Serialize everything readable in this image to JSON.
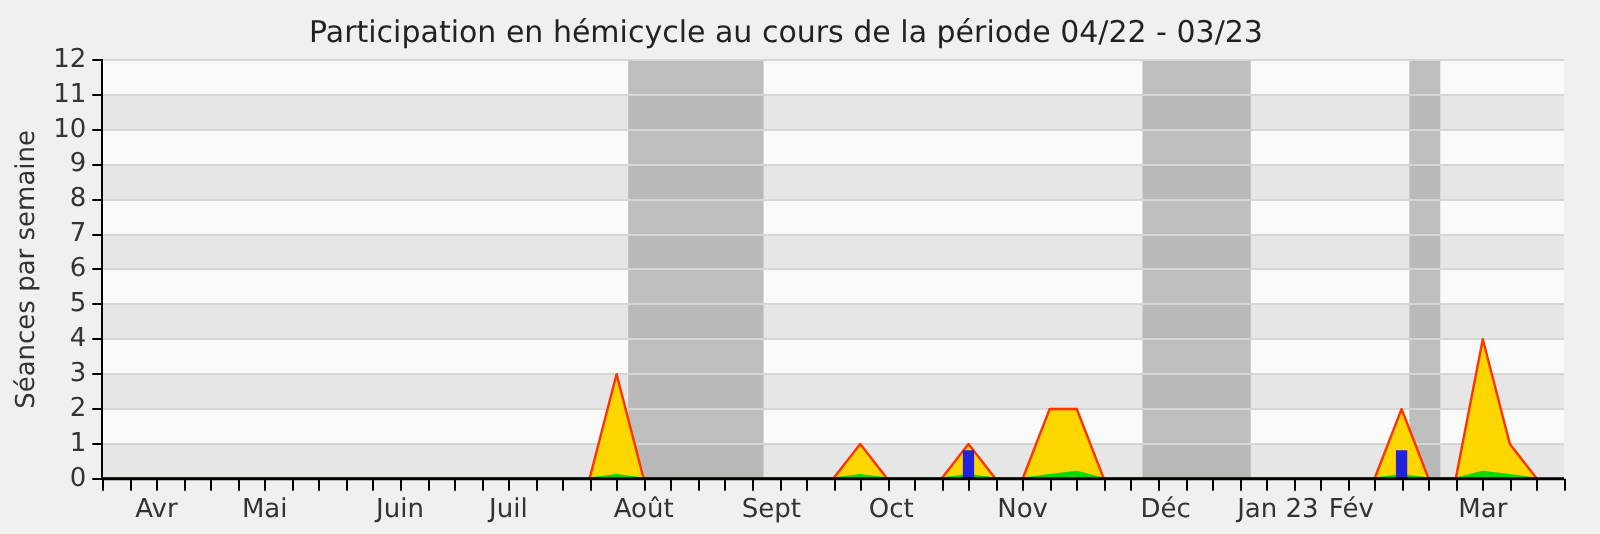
{
  "chart_data": {
    "type": "area",
    "title": "Participation en hémicycle au cours de la période 04/22 - 03/23",
    "ylabel": "Séances par semaine",
    "x": [
      "2022-03-21",
      "2022-03-28",
      "2022-04-04",
      "2022-04-11",
      "2022-04-18",
      "2022-04-25",
      "2022-05-02",
      "2022-05-09",
      "2022-05-16",
      "2022-05-23",
      "2022-05-30",
      "2022-06-06",
      "2022-06-13",
      "2022-06-20",
      "2022-06-27",
      "2022-07-04",
      "2022-07-11",
      "2022-07-18",
      "2022-07-25",
      "2022-08-01",
      "2022-08-08",
      "2022-08-15",
      "2022-08-22",
      "2022-08-29",
      "2022-09-05",
      "2022-09-12",
      "2022-09-19",
      "2022-09-26",
      "2022-10-03",
      "2022-10-10",
      "2022-10-17",
      "2022-10-24",
      "2022-10-31",
      "2022-11-07",
      "2022-11-14",
      "2022-11-21",
      "2022-11-28",
      "2022-12-05",
      "2022-12-12",
      "2022-12-19",
      "2022-12-26",
      "2023-01-02",
      "2023-01-09",
      "2023-01-16",
      "2023-01-23",
      "2023-01-30",
      "2023-02-06",
      "2023-02-13",
      "2023-02-20",
      "2023-02-27",
      "2023-03-06",
      "2023-03-13",
      "2023-03-20",
      "2023-03-27"
    ],
    "series": [
      {
        "color": "#ffd700",
        "values": [
          0,
          0,
          0,
          0,
          0,
          0,
          0,
          0,
          0,
          0,
          0,
          0,
          0,
          0,
          0,
          0,
          0,
          0,
          0,
          3,
          0,
          0,
          0,
          0,
          0,
          0,
          0,
          0,
          1,
          0,
          0,
          0,
          1,
          0,
          0,
          2,
          2,
          0,
          0,
          0,
          0,
          0,
          0,
          0,
          0,
          0,
          0,
          0,
          2,
          0,
          0,
          4,
          1,
          0
        ]
      },
      {
        "color": "#00dd00",
        "values": [
          0,
          0,
          0,
          0,
          0,
          0,
          0,
          0,
          0,
          0,
          0,
          0,
          0,
          0,
          0,
          0,
          0,
          0,
          0,
          0.1,
          0,
          0,
          0,
          0,
          0,
          0,
          0,
          0,
          0.1,
          0,
          0,
          0,
          0.1,
          0,
          0,
          0.1,
          0.2,
          0,
          0,
          0,
          0,
          0,
          0,
          0,
          0,
          0,
          0,
          0,
          0.1,
          0,
          0,
          0.2,
          0.1,
          0
        ]
      },
      {
        "type": "bar",
        "color": "#2222dd",
        "values": [
          0,
          0,
          0,
          0,
          0,
          0,
          0,
          0,
          0,
          0,
          0,
          0,
          0,
          0,
          0,
          0,
          0,
          0,
          0,
          0,
          0,
          0,
          0,
          0,
          0,
          0,
          0,
          0,
          0,
          0,
          0,
          0,
          0.8,
          0,
          0,
          0,
          0,
          0,
          0,
          0,
          0,
          0,
          0,
          0,
          0,
          0,
          0,
          0,
          0.8,
          0,
          0,
          0,
          0,
          0
        ]
      }
    ],
    "xlim": [
      "2022-03-21",
      "2023-04-03"
    ],
    "xticks": [
      {
        "value": "2022-04-04",
        "label": "Avr"
      },
      {
        "value": "2022-05-02",
        "label": "Mai"
      },
      {
        "value": "2022-06-06",
        "label": "Juin"
      },
      {
        "value": "2022-07-04",
        "label": "Juil"
      },
      {
        "value": "2022-08-08",
        "label": "Août"
      },
      {
        "value": "2022-09-10",
        "label": "Sept"
      },
      {
        "value": "2022-10-11",
        "label": "Oct"
      },
      {
        "value": "2022-11-14",
        "label": "Nov"
      },
      {
        "value": "2022-12-21",
        "label": "Déc"
      },
      {
        "value": "2023-01-19",
        "label": "Jan 23"
      },
      {
        "value": "2023-02-07",
        "label": "Fév"
      },
      {
        "value": "2023-03-13",
        "label": "Mar"
      }
    ],
    "ylim": [
      0,
      12
    ],
    "yticks": [
      0,
      1,
      2,
      3,
      4,
      5,
      6,
      7,
      8,
      9,
      10,
      11,
      12
    ],
    "bands": [
      {
        "axis": "x",
        "from": "2022-08-04",
        "to": "2022-09-08",
        "color": "#aaaaaa"
      },
      {
        "axis": "x",
        "from": "2022-12-15",
        "to": "2023-01-12",
        "color": "#aaaaaa"
      },
      {
        "axis": "x",
        "from": "2023-02-22",
        "to": "2023-03-02",
        "color": "#aaaaaa"
      }
    ],
    "grid": "y"
  }
}
